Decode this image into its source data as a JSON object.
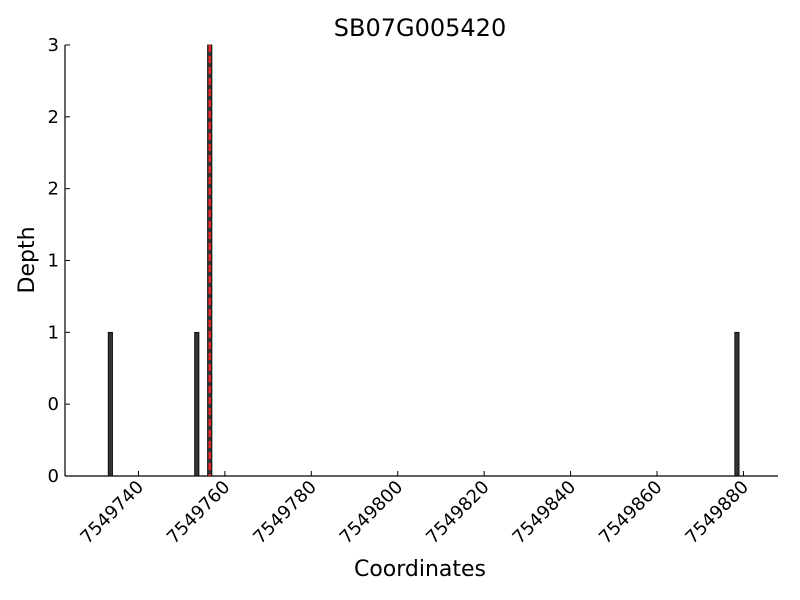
{
  "chart_data": {
    "type": "bar",
    "title": "SB07G005420",
    "x_label": "Coordinates",
    "y_label": "Depth",
    "x": [
      7549733,
      7549753,
      7549756,
      7549878
    ],
    "values": [
      1,
      1,
      3,
      1
    ],
    "color": "#333333",
    "marker_line": {
      "x": 7549756.5,
      "color": "#e8262a",
      "style": "dashed"
    },
    "xlim": [
      7549723,
      7549888
    ],
    "xticks": [
      7549740,
      7549760,
      7549780,
      7549800,
      7549820,
      7549840,
      7549860,
      7549880
    ],
    "ylim": [
      0,
      3
    ],
    "yticks": [
      {
        "value": 0,
        "label": "0"
      },
      {
        "value": 0.5,
        "label": "0"
      },
      {
        "value": 1,
        "label": "1"
      },
      {
        "value": 1.5,
        "label": "1"
      },
      {
        "value": 2,
        "label": "2"
      },
      {
        "value": 2.5,
        "label": "2"
      },
      {
        "value": 3,
        "label": "3"
      }
    ],
    "grid": false
  }
}
